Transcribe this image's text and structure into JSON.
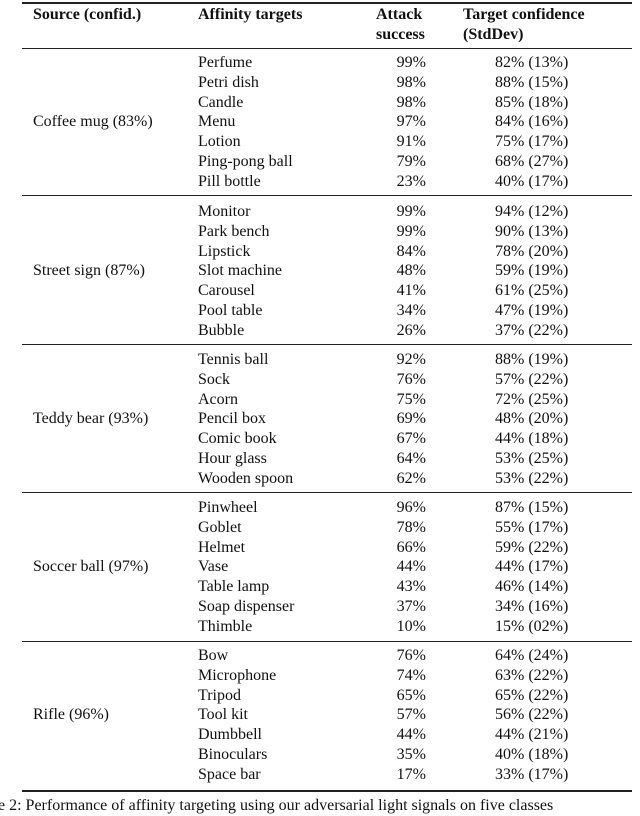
{
  "table": {
    "header": [
      "Source (confid.)",
      "Affinity targets",
      "Attack success",
      "Target confidence (StdDev)"
    ],
    "groups": [
      {
        "source": "Coffee mug (83%)",
        "rows": [
          [
            "Perfume",
            "99%",
            "82% (13%)"
          ],
          [
            "Petri dish",
            "98%",
            "88% (15%)"
          ],
          [
            "Candle",
            "98%",
            "85% (18%)"
          ],
          [
            "Menu",
            "97%",
            "84% (16%)"
          ],
          [
            "Lotion",
            "91%",
            "75% (17%)"
          ],
          [
            "Ping-pong ball",
            "79%",
            "68% (27%)"
          ],
          [
            "Pill bottle",
            "23%",
            "40% (17%)"
          ]
        ]
      },
      {
        "source": "Street sign (87%)",
        "rows": [
          [
            "Monitor",
            "99%",
            "94% (12%)"
          ],
          [
            "Park bench",
            "99%",
            "90% (13%)"
          ],
          [
            "Lipstick",
            "84%",
            "78% (20%)"
          ],
          [
            "Slot machine",
            "48%",
            "59% (19%)"
          ],
          [
            "Carousel",
            "41%",
            "61% (25%)"
          ],
          [
            "Pool table",
            "34%",
            "47% (19%)"
          ],
          [
            "Bubble",
            "26%",
            "37% (22%)"
          ]
        ]
      },
      {
        "source": "Teddy bear (93%)",
        "rows": [
          [
            "Tennis ball",
            "92%",
            "88% (19%)"
          ],
          [
            "Sock",
            "76%",
            "57% (22%)"
          ],
          [
            "Acorn",
            "75%",
            "72% (25%)"
          ],
          [
            "Pencil box",
            "69%",
            "48% (20%)"
          ],
          [
            "Comic book",
            "67%",
            "44% (18%)"
          ],
          [
            "Hour glass",
            "64%",
            "53% (25%)"
          ],
          [
            "Wooden spoon",
            "62%",
            "53% (22%)"
          ]
        ]
      },
      {
        "source": "Soccer ball (97%)",
        "rows": [
          [
            "Pinwheel",
            "96%",
            "87% (15%)"
          ],
          [
            "Goblet",
            "78%",
            "55% (17%)"
          ],
          [
            "Helmet",
            "66%",
            "59% (22%)"
          ],
          [
            "Vase",
            "44%",
            "44% (17%)"
          ],
          [
            "Table lamp",
            "43%",
            "46% (14%)"
          ],
          [
            "Soap dispenser",
            "37%",
            "34% (16%)"
          ],
          [
            "Thimble",
            "10%",
            "15% (02%)"
          ]
        ]
      },
      {
        "source": "Rifle (96%)",
        "rows": [
          [
            "Bow",
            "76%",
            "64% (24%)"
          ],
          [
            "Microphone",
            "74%",
            "63% (22%)"
          ],
          [
            "Tripod",
            "65%",
            "65% (22%)"
          ],
          [
            "Tool kit",
            "57%",
            "56% (22%)"
          ],
          [
            "Dumbbell",
            "44%",
            "44% (21%)"
          ],
          [
            "Binoculars",
            "35%",
            "40% (18%)"
          ],
          [
            "Space bar",
            "17%",
            "33% (17%)"
          ]
        ]
      }
    ]
  },
  "caption": "e 2: Performance of affinity targeting using our adversarial light signals on five classes"
}
